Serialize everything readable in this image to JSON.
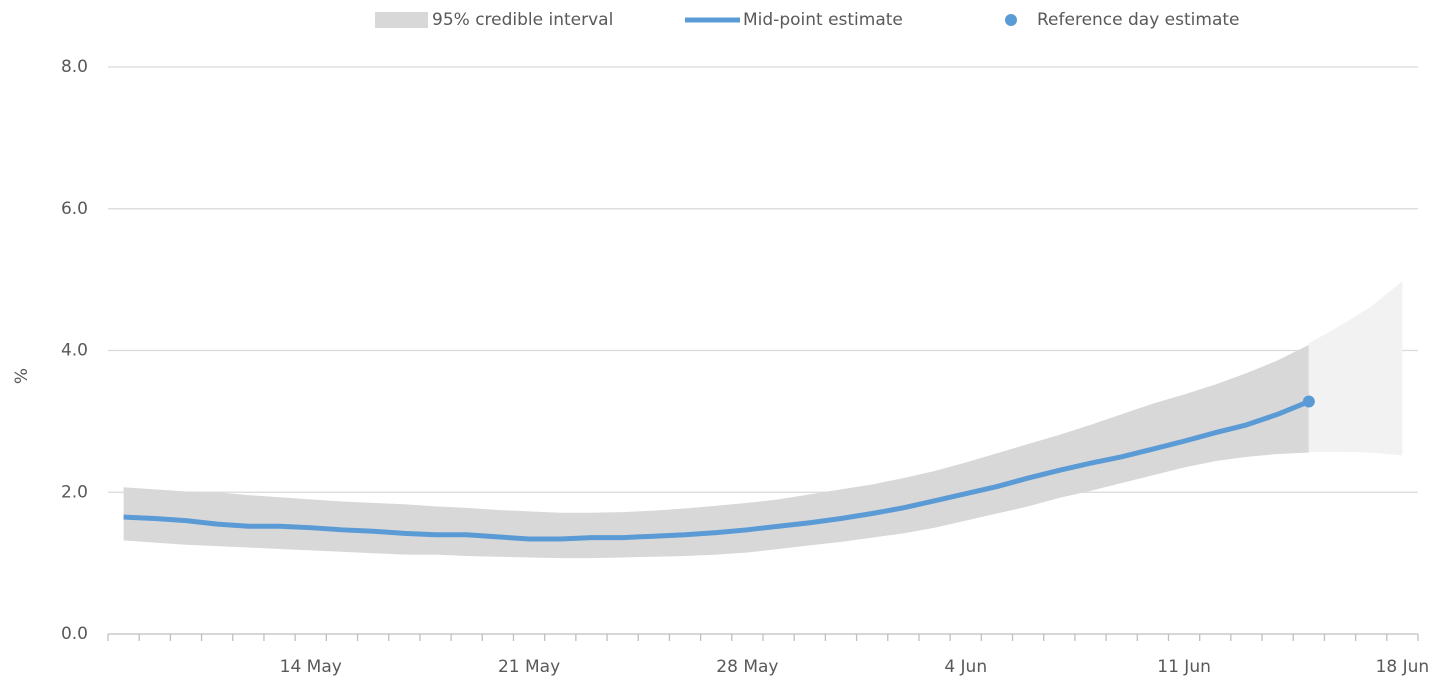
{
  "chart_data": {
    "type": "line",
    "y_label": "%",
    "categories": [
      null,
      null,
      null,
      null,
      null,
      null,
      "14 May",
      null,
      null,
      null,
      null,
      null,
      null,
      "21 May",
      null,
      null,
      null,
      null,
      null,
      null,
      "28 May",
      null,
      null,
      null,
      null,
      null,
      null,
      "4 Jun",
      null,
      null,
      null,
      null,
      null,
      null,
      "11 Jun",
      null,
      null,
      null,
      null,
      null,
      null,
      "18 Jun"
    ],
    "ylim": [
      0,
      8
    ],
    "yticks": [
      {
        "value": 0,
        "label": "0.0"
      },
      {
        "value": 2,
        "label": "2.0"
      },
      {
        "value": 4,
        "label": "4.0"
      },
      {
        "value": 6,
        "label": "6.0"
      },
      {
        "value": 8,
        "label": "8.0"
      }
    ],
    "grid": true,
    "legend": "top",
    "series": [
      {
        "name": "95% credible interval",
        "type": "band",
        "color": "#d9d8d9",
        "upper": [
          2.07,
          2.04,
          2.01,
          2.0,
          1.96,
          1.93,
          1.9,
          1.87,
          1.85,
          1.83,
          1.8,
          1.78,
          1.75,
          1.73,
          1.71,
          1.71,
          1.72,
          1.74,
          1.77,
          1.81,
          1.85,
          1.9,
          1.97,
          2.04,
          2.11,
          2.2,
          2.3,
          2.42,
          2.55,
          2.68,
          2.81,
          2.95,
          3.1,
          3.25,
          3.38,
          3.52,
          3.68,
          3.86,
          4.08,
          null,
          null,
          null
        ],
        "lower": [
          1.32,
          1.29,
          1.26,
          1.24,
          1.22,
          1.2,
          1.18,
          1.16,
          1.14,
          1.12,
          1.12,
          1.1,
          1.09,
          1.08,
          1.07,
          1.07,
          1.08,
          1.09,
          1.1,
          1.12,
          1.15,
          1.2,
          1.25,
          1.3,
          1.36,
          1.42,
          1.5,
          1.6,
          1.7,
          1.8,
          1.92,
          2.02,
          2.13,
          2.24,
          2.35,
          2.44,
          2.5,
          2.54,
          2.56,
          null,
          null,
          null
        ]
      },
      {
        "type": "band",
        "color": "#f2f2f2",
        "upper": [
          null,
          null,
          null,
          null,
          null,
          null,
          null,
          null,
          null,
          null,
          null,
          null,
          null,
          null,
          null,
          null,
          null,
          null,
          null,
          null,
          null,
          null,
          null,
          null,
          null,
          null,
          null,
          null,
          null,
          null,
          null,
          null,
          null,
          null,
          null,
          null,
          null,
          null,
          4.1,
          4.35,
          4.62,
          4.98
        ],
        "lower": [
          null,
          null,
          null,
          null,
          null,
          null,
          null,
          null,
          null,
          null,
          null,
          null,
          null,
          null,
          null,
          null,
          null,
          null,
          null,
          null,
          null,
          null,
          null,
          null,
          null,
          null,
          null,
          null,
          null,
          null,
          null,
          null,
          null,
          null,
          null,
          null,
          null,
          null,
          2.57,
          2.57,
          2.56,
          2.52
        ]
      },
      {
        "name": "Mid-point estimate",
        "type": "line",
        "color": "#5b9bd5",
        "values": [
          1.65,
          1.63,
          1.6,
          1.55,
          1.52,
          1.52,
          1.5,
          1.47,
          1.45,
          1.42,
          1.4,
          1.4,
          1.37,
          1.34,
          1.34,
          1.36,
          1.36,
          1.38,
          1.4,
          1.43,
          1.47,
          1.52,
          1.57,
          1.63,
          1.7,
          1.78,
          1.88,
          1.98,
          2.08,
          2.2,
          2.31,
          2.41,
          2.5,
          2.61,
          2.72,
          2.84,
          2.95,
          3.1,
          3.28,
          null,
          null,
          null
        ]
      },
      {
        "name": "Reference day estimate",
        "type": "point",
        "color": "#5b9bd5",
        "values": [
          null,
          null,
          null,
          null,
          null,
          null,
          null,
          null,
          null,
          null,
          null,
          null,
          null,
          null,
          null,
          null,
          null,
          null,
          null,
          null,
          null,
          null,
          null,
          null,
          null,
          null,
          null,
          null,
          null,
          null,
          null,
          null,
          null,
          null,
          null,
          null,
          null,
          null,
          3.28,
          null,
          null,
          null
        ]
      }
    ]
  }
}
